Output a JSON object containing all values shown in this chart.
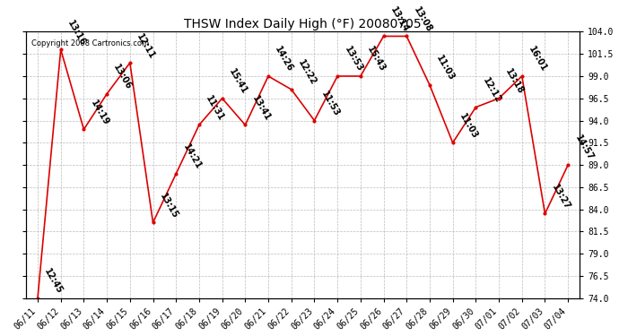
{
  "title": "THSW Index Daily High (°F) 20080705",
  "copyright": "Copyright 2008 Cartronics.com",
  "dates": [
    "06/11",
    "06/12",
    "06/13",
    "06/14",
    "06/15",
    "06/16",
    "06/17",
    "06/18",
    "06/19",
    "06/20",
    "06/21",
    "06/22",
    "06/23",
    "06/24",
    "06/25",
    "06/26",
    "06/27",
    "06/28",
    "06/29",
    "06/30",
    "07/01",
    "07/02",
    "07/03",
    "07/04"
  ],
  "values": [
    74.0,
    102.0,
    93.0,
    97.0,
    100.5,
    82.5,
    88.0,
    93.5,
    96.5,
    93.5,
    99.0,
    97.5,
    94.0,
    99.0,
    99.0,
    103.5,
    103.5,
    98.0,
    91.5,
    95.5,
    96.5,
    99.0,
    83.5,
    89.0
  ],
  "labels": [
    "12:45",
    "13:16",
    "14:19",
    "13:06",
    "12:11",
    "13:15",
    "14:21",
    "11:31",
    "15:41",
    "13:41",
    "14:26",
    "12:22",
    "11:53",
    "13:53",
    "15:43",
    "13:14",
    "13:08",
    "11:03",
    "11:03",
    "12:12",
    "13:18",
    "16:01",
    "13:27",
    "14:57"
  ],
  "ylim": [
    74.0,
    104.0
  ],
  "yticks": [
    74.0,
    76.5,
    79.0,
    81.5,
    84.0,
    86.5,
    89.0,
    91.5,
    94.0,
    96.5,
    99.0,
    101.5,
    104.0
  ],
  "line_color": "#dd0000",
  "marker_color": "#dd0000",
  "bg_color": "#ffffff",
  "grid_color": "#aaaaaa",
  "title_fontsize": 10,
  "label_fontsize": 7,
  "tick_fontsize": 7,
  "axis_label_rotation": 45
}
